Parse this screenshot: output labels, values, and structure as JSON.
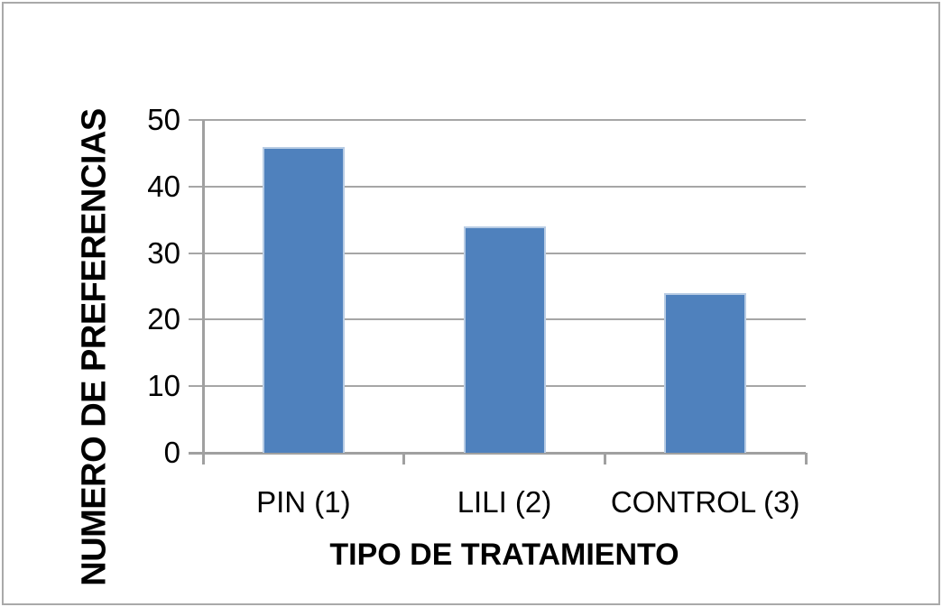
{
  "chart_data": {
    "type": "bar",
    "categories": [
      "PIN (1)",
      "LILI (2)",
      "CONTROL (3)"
    ],
    "values": [
      46,
      34,
      24
    ],
    "xlabel": "TIPO DE TRATAMIENTO",
    "ylabel": "NUMERO DE PREFERENCIAS",
    "ylim": [
      0,
      50
    ],
    "yticks": [
      0,
      10,
      20,
      30,
      40,
      50
    ],
    "grid": true,
    "legend": false,
    "colors": {
      "bar_fill": "#4F81BD",
      "bar_edge": "#B8CCE4",
      "gridline": "#A6A6A6",
      "axis": "#A0A0A0",
      "text": "#000000",
      "frame_border": "#A9A9A9",
      "background": "#FFFFFF"
    }
  }
}
